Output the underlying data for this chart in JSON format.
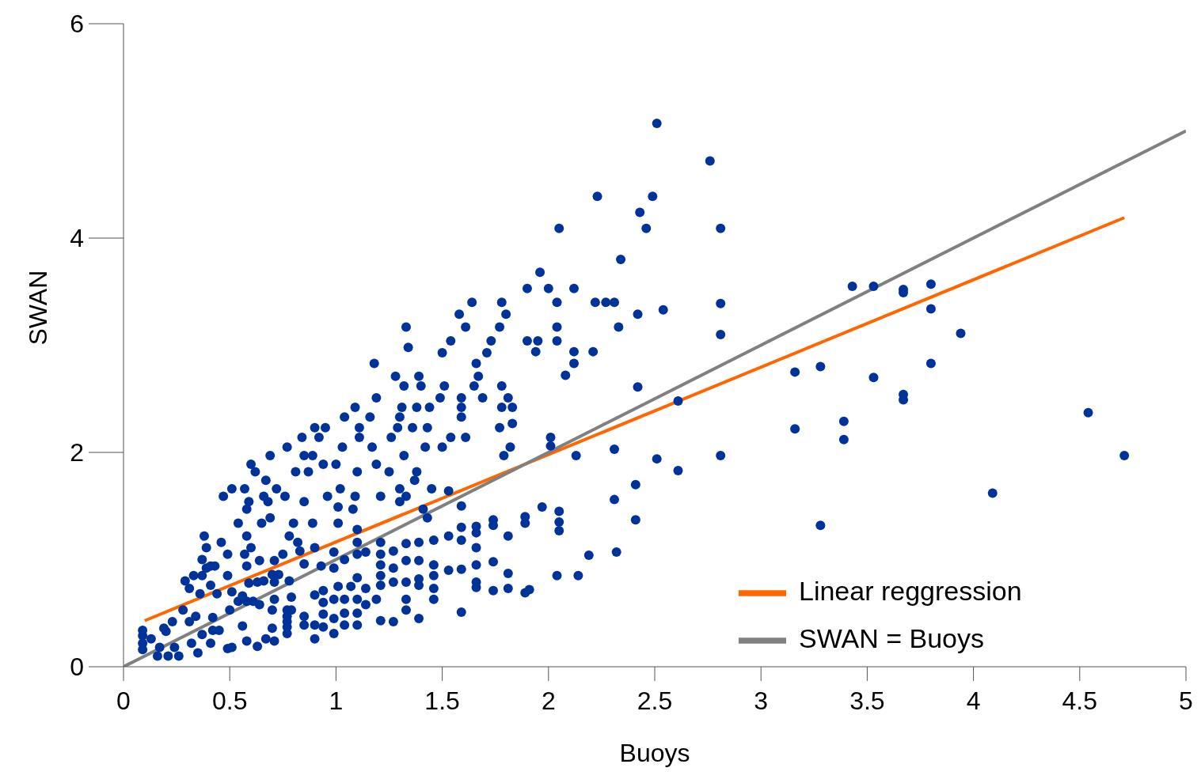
{
  "chart_data": {
    "type": "scatter",
    "xlabel": "Buoys",
    "ylabel": "SWAN",
    "xlim": [
      0,
      5
    ],
    "ylim": [
      0,
      6
    ],
    "xticks": [
      0,
      0.5,
      1,
      1.5,
      2,
      2.5,
      3,
      3.5,
      4,
      4.5,
      5
    ],
    "yticks": [
      0,
      2,
      4,
      6
    ],
    "grid": false,
    "legend": "bottom right",
    "series": [
      {
        "type": "scatter",
        "color": "#003399",
        "marker": "circle",
        "x": [
          2.51,
          2.76,
          2.23,
          2.49,
          2.43,
          2.46,
          2.05,
          2.81,
          2.34,
          1.96,
          1.9,
          2.0,
          2.12,
          2.04,
          2.22,
          2.27,
          2.31,
          2.81,
          2.54,
          2.42,
          2.33,
          2.04,
          2.81,
          2.04,
          1.9,
          1.95,
          1.94,
          2.12,
          2.21,
          2.12,
          2.08,
          2.42,
          2.61,
          2.01,
          2.01,
          2.13,
          2.31,
          2.51,
          2.81,
          2.61,
          2.41,
          2.31,
          2.41,
          2.32,
          2.19,
          2.14,
          2.04,
          3.43,
          3.53,
          3.67,
          3.67,
          3.8,
          3.8,
          3.94,
          3.16,
          3.28,
          3.53,
          3.67,
          3.67,
          3.8,
          3.39,
          3.39,
          3.16,
          4.54,
          4.71,
          4.09,
          3.28,
          1.33,
          1.34,
          1.58,
          1.64,
          1.78,
          1.8,
          1.61,
          1.77,
          1.54,
          1.73,
          1.5,
          1.71,
          1.66,
          1.18,
          1.67,
          1.28,
          1.39,
          1.32,
          1.4,
          1.51,
          1.65,
          1.78,
          1.19,
          1.49,
          1.59,
          1.69,
          1.81,
          1.09,
          1.31,
          1.38,
          1.44,
          1.59,
          1.78,
          1.83,
          1.04,
          1.16,
          1.3,
          1.59,
          1.11,
          1.29,
          1.36,
          1.43,
          1.77,
          1.83,
          0.9,
          0.95,
          0.84,
          0.92,
          1.11,
          1.26,
          1.54,
          1.61,
          0.77,
          1.03,
          1.17,
          1.42,
          1.5,
          1.82,
          0.69,
          0.85,
          0.89,
          1.32,
          1.79,
          0.6,
          0.94,
          1.0,
          1.19,
          0.62,
          0.81,
          0.87,
          1.1,
          1.25,
          1.38,
          0.67,
          1.37,
          0.51,
          0.57,
          0.72,
          1.02,
          1.3,
          1.45,
          0.47,
          0.66,
          0.76,
          0.96,
          1.09,
          1.21,
          1.33,
          1.53,
          0.59,
          0.68,
          0.85,
          1.3,
          0.58,
          1.01,
          1.08,
          1.59,
          1.97,
          1.41,
          1.43,
          0.69,
          0.65,
          0.54,
          0.58,
          0.8,
          0.89,
          1.01,
          1.1,
          1.74,
          1.74,
          1.89,
          1.89,
          1.59,
          1.66,
          1.66,
          1.81,
          1.46,
          1.53,
          1.59,
          0.38,
          0.78,
          0.82,
          0.39,
          0.46,
          0.49,
          0.57,
          0.6,
          0.9,
          0.99,
          1.14,
          1.21,
          1.21,
          1.21,
          1.21,
          1.21,
          1.27,
          1.27,
          1.27,
          1.33,
          1.33,
          1.33,
          1.33,
          1.33,
          1.39,
          1.39,
          1.39,
          1.39,
          1.46,
          1.46,
          1.46,
          1.46,
          1.53,
          1.59,
          1.59,
          1.66,
          1.66,
          1.66,
          1.66,
          1.74,
          1.74,
          1.81,
          1.81,
          1.89,
          1.91,
          2.05,
          2.05,
          2.05,
          0.29,
          0.33,
          0.37,
          0.39,
          0.41,
          0.43,
          0.31,
          0.41,
          0.49,
          0.37,
          0.36,
          0.44,
          0.51,
          0.56,
          0.54,
          0.59,
          0.63,
          0.66,
          0.71,
          0.71,
          0.7,
          0.73,
          0.78,
          0.61,
          0.64,
          0.5,
          0.58,
          0.7,
          0.77,
          0.79,
          0.79,
          0.7,
          0.71,
          0.77,
          0.77,
          0.77,
          0.77,
          0.85,
          0.85,
          0.9,
          0.9,
          0.9,
          0.94,
          0.94,
          0.94,
          0.94,
          0.99,
          0.99,
          0.99,
          1.04,
          1.04,
          1.04,
          1.1,
          1.1,
          1.1,
          1.14,
          1.19,
          1.21,
          1.27,
          1.39,
          1.01,
          1.07,
          1.1,
          1.14,
          1.1,
          1.1,
          1.04,
          0.99,
          0.93,
          0.85,
          0.75,
          0.71,
          0.64,
          0.58,
          0.83,
          0.09,
          0.09,
          0.09,
          0.09,
          0.13,
          0.16,
          0.19,
          0.2,
          0.23,
          0.21,
          0.26,
          0.17,
          0.24,
          0.28,
          0.31,
          0.34,
          0.32,
          0.35,
          0.37,
          0.42,
          0.45,
          0.41,
          0.49,
          0.51,
          0.42,
          0.56,
          0.58,
          0.63,
          0.67
        ],
        "values": [
          5.07,
          4.72,
          4.39,
          4.39,
          4.24,
          4.09,
          4.09,
          4.09,
          3.8,
          3.68,
          3.53,
          3.53,
          3.53,
          3.4,
          3.4,
          3.4,
          3.4,
          3.39,
          3.33,
          3.29,
          3.17,
          3.17,
          3.1,
          3.04,
          3.04,
          3.04,
          2.94,
          2.94,
          2.94,
          2.83,
          2.72,
          2.61,
          2.48,
          2.14,
          2.06,
          1.97,
          2.03,
          1.94,
          1.97,
          1.83,
          1.7,
          1.56,
          1.37,
          1.07,
          1.04,
          0.85,
          0.85,
          3.55,
          3.55,
          3.52,
          3.49,
          3.57,
          3.34,
          3.11,
          2.75,
          2.8,
          2.7,
          2.54,
          2.49,
          2.83,
          2.29,
          2.12,
          2.22,
          2.37,
          1.97,
          1.62,
          1.32,
          3.17,
          2.98,
          3.29,
          3.4,
          3.4,
          3.29,
          3.17,
          3.17,
          3.04,
          3.04,
          2.93,
          2.93,
          2.83,
          2.83,
          2.71,
          2.71,
          2.71,
          2.62,
          2.62,
          2.62,
          2.62,
          2.62,
          2.51,
          2.51,
          2.51,
          2.51,
          2.51,
          2.42,
          2.42,
          2.42,
          2.42,
          2.42,
          2.42,
          2.42,
          2.33,
          2.33,
          2.33,
          2.33,
          2.23,
          2.23,
          2.23,
          2.23,
          2.23,
          2.27,
          2.23,
          2.23,
          2.14,
          2.14,
          2.14,
          2.14,
          2.14,
          2.14,
          2.05,
          2.05,
          2.05,
          2.05,
          2.05,
          2.05,
          1.97,
          1.97,
          1.97,
          1.97,
          1.97,
          1.89,
          1.89,
          1.89,
          1.89,
          1.82,
          1.82,
          1.82,
          1.82,
          1.82,
          1.82,
          1.74,
          1.74,
          1.66,
          1.66,
          1.66,
          1.66,
          1.66,
          1.66,
          1.59,
          1.59,
          1.59,
          1.59,
          1.59,
          1.59,
          1.59,
          1.64,
          1.54,
          1.54,
          1.54,
          1.54,
          1.47,
          1.49,
          1.47,
          1.5,
          1.49,
          1.47,
          1.39,
          1.39,
          1.34,
          1.34,
          1.22,
          1.34,
          1.34,
          1.34,
          1.28,
          1.37,
          1.32,
          1.4,
          1.34,
          1.3,
          1.31,
          1.25,
          1.22,
          1.18,
          1.22,
          1.18,
          1.22,
          1.22,
          1.16,
          1.11,
          1.16,
          1.05,
          1.05,
          1.11,
          1.11,
          1.07,
          1.07,
          1.16,
          1.05,
          0.95,
          0.85,
          0.76,
          1.08,
          0.92,
          0.79,
          1.15,
          0.99,
          0.79,
          0.63,
          0.53,
          1.16,
          0.99,
          0.82,
          0.76,
          0.95,
          0.85,
          0.73,
          0.63,
          0.9,
          0.91,
          0.51,
          1.11,
          0.95,
          0.79,
          0.74,
          0.98,
          0.71,
          0.87,
          0.73,
          0.69,
          0.72,
          1.45,
          1.35,
          1.27,
          0.8,
          0.85,
          0.85,
          0.92,
          0.94,
          0.94,
          0.73,
          0.76,
          0.85,
          1.0,
          0.68,
          0.68,
          0.7,
          0.66,
          0.61,
          0.78,
          0.79,
          0.8,
          0.79,
          0.63,
          0.86,
          0.86,
          0.8,
          0.61,
          0.58,
          0.53,
          0.61,
          0.53,
          0.53,
          0.53,
          0.65,
          0.36,
          0.24,
          0.47,
          0.42,
          0.37,
          0.31,
          0.47,
          0.39,
          0.67,
          0.39,
          0.26,
          0.71,
          0.6,
          0.49,
          0.37,
          0.63,
          0.45,
          0.31,
          0.63,
          0.5,
          0.39,
          0.63,
          0.5,
          0.39,
          0.58,
          0.63,
          0.43,
          0.42,
          0.45,
          0.75,
          0.75,
          0.83,
          0.73,
          1.16,
          1.05,
          1.0,
          0.92,
          0.94,
          0.96,
          1.05,
          0.99,
          0.99,
          0.94,
          1.08,
          0.34,
          0.29,
          0.22,
          0.16,
          0.26,
          0.1,
          0.36,
          0.33,
          0.42,
          0.1,
          0.1,
          0.18,
          0.18,
          0.53,
          0.42,
          0.47,
          0.22,
          0.13,
          0.3,
          0.34,
          0.34,
          0.22,
          0.17,
          0.18,
          0.46,
          0.38,
          0.24,
          0.19,
          0.26
        ]
      },
      {
        "type": "line",
        "name": "Linear reggression",
        "color": "#ff6600",
        "marker": "none",
        "line_style": "solid",
        "x": [
          0.1,
          4.71
        ],
        "values": [
          0.43,
          4.19
        ]
      },
      {
        "type": "line",
        "name": "SWAN = Buoys",
        "color": "#808080",
        "marker": "none",
        "line_style": "solid",
        "x": [
          0,
          5
        ],
        "values": [
          0,
          5
        ]
      }
    ]
  }
}
